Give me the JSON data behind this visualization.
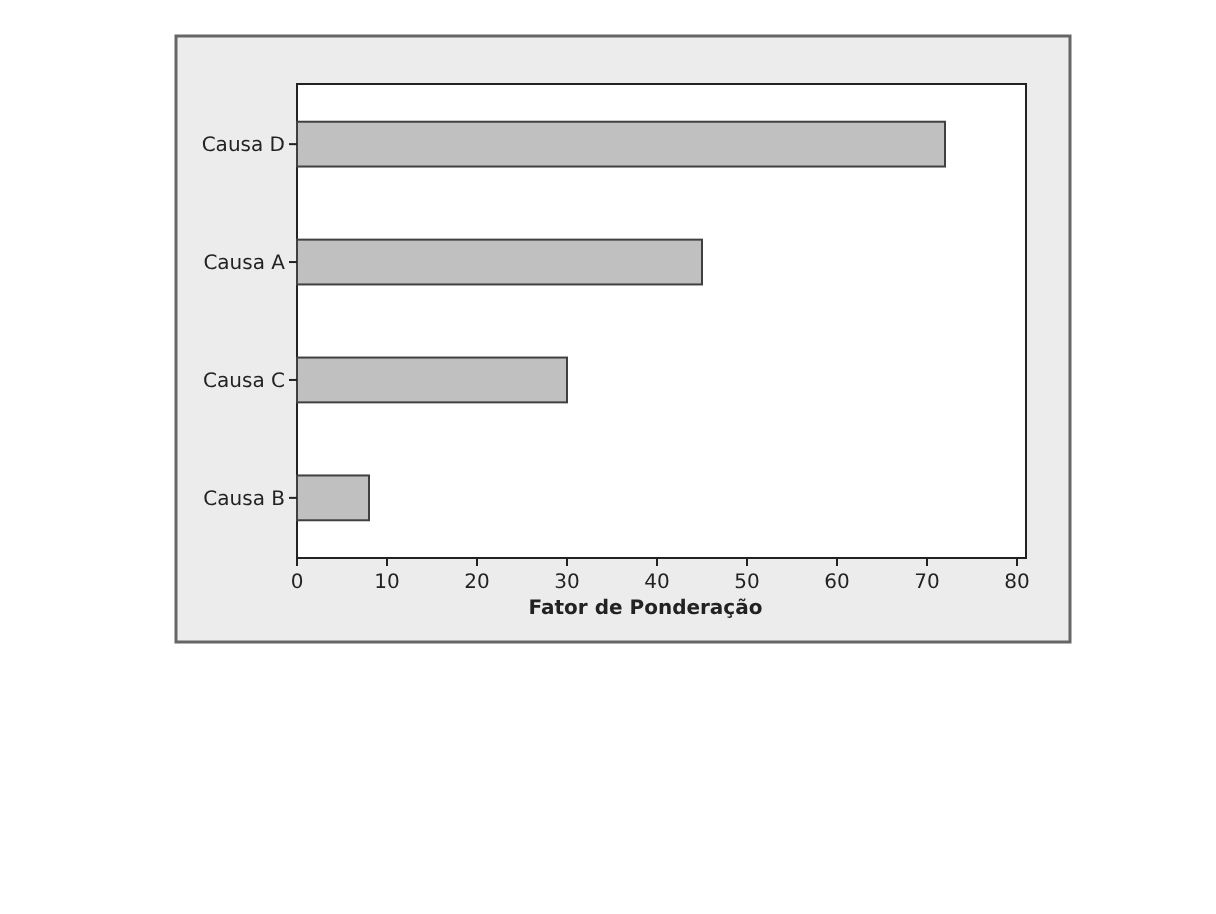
{
  "chart_data": {
    "type": "bar",
    "orientation": "horizontal",
    "xlabel": "Fator de Ponderação",
    "categories": [
      "Causa D",
      "Causa A",
      "Causa C",
      "Causa B"
    ],
    "values": [
      72,
      45,
      30,
      8
    ],
    "color": "#c0c0c0",
    "xlim": [
      0,
      81
    ],
    "xticks": [
      0,
      10,
      20,
      30,
      40,
      50,
      60,
      70,
      80
    ],
    "grid": false
  }
}
